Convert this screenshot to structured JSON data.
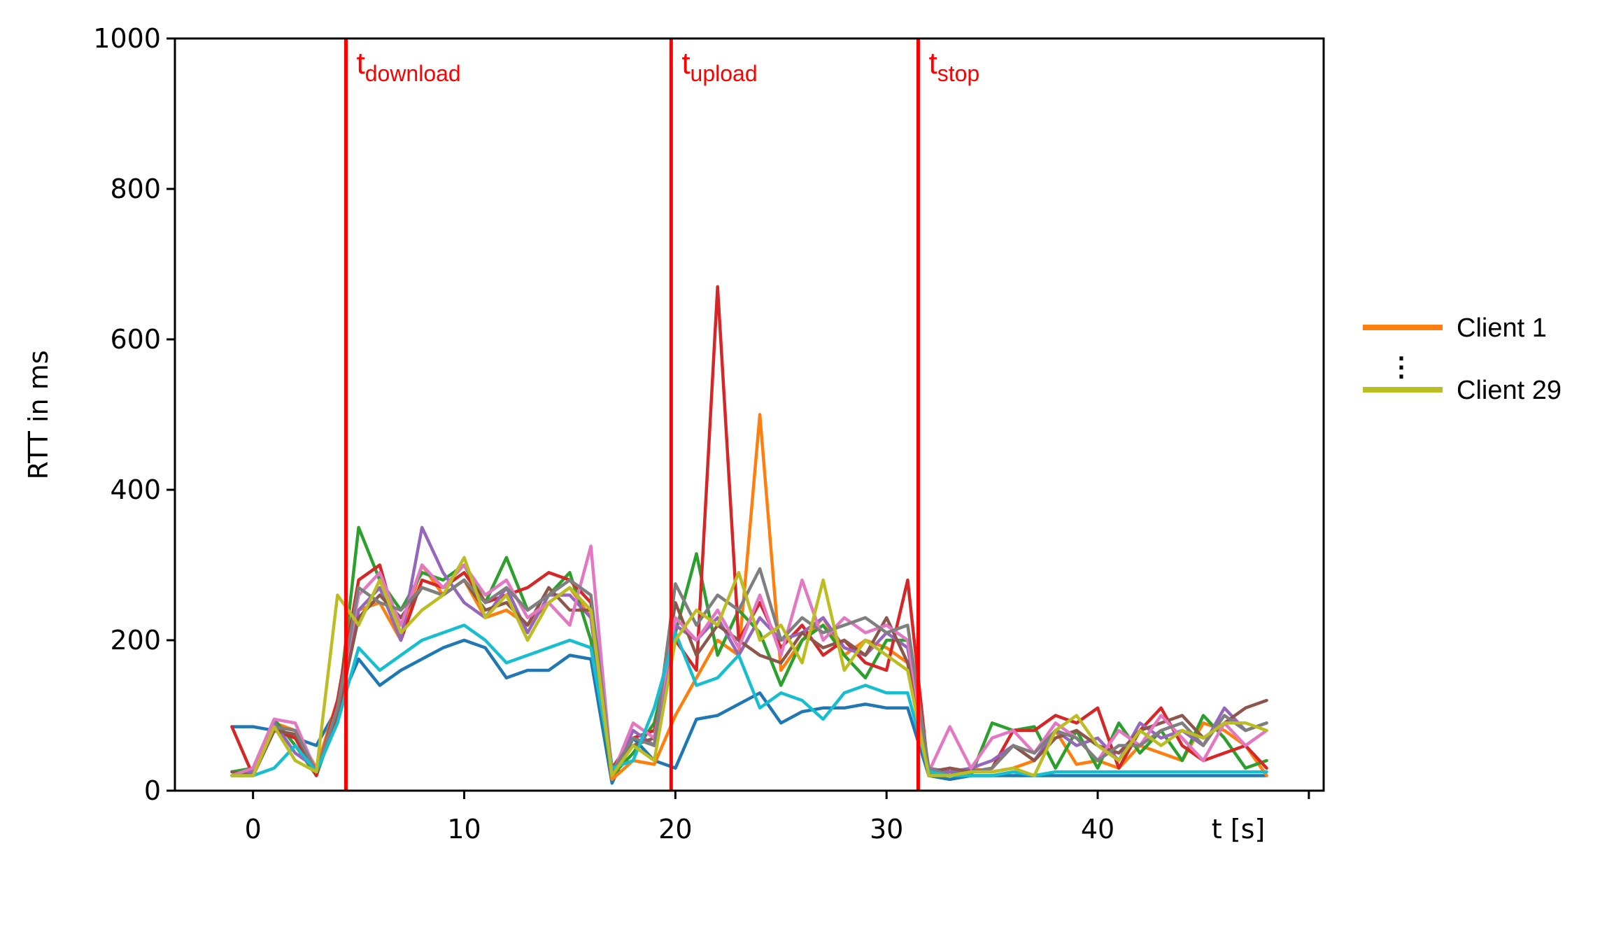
{
  "chart_data": {
    "type": "line",
    "xlabel": "t [s]",
    "ylabel": "RTT in ms",
    "xlim": [
      -3.7,
      50.7
    ],
    "ylim": [
      0,
      1000
    ],
    "xticks": [
      0,
      10,
      20,
      30,
      40
    ],
    "yticks": [
      0,
      200,
      400,
      600,
      800,
      1000
    ],
    "grid": false,
    "legend_position": "right",
    "legend": {
      "first": {
        "label": "Client 1",
        "color": "#ff7f0e"
      },
      "ellipsis": "⋮",
      "last": {
        "label": "Client 29",
        "color": "#bcbd22"
      }
    },
    "markers": [
      {
        "name": "download",
        "base": "t",
        "sub": "download",
        "x": 4.4,
        "color": "#ff0000"
      },
      {
        "name": "upload",
        "base": "t",
        "sub": "upload",
        "x": 19.8,
        "color": "#ff0000"
      },
      {
        "name": "stop",
        "base": "t",
        "sub": "stop",
        "x": 31.5,
        "color": "#ff0000"
      }
    ],
    "x": [
      -1,
      0,
      1,
      2,
      3,
      4,
      5,
      6,
      7,
      8,
      9,
      10,
      11,
      12,
      13,
      14,
      15,
      16,
      17,
      18,
      19,
      20,
      21,
      22,
      23,
      24,
      25,
      26,
      27,
      28,
      29,
      30,
      31,
      32,
      33,
      34,
      35,
      36,
      37,
      38,
      39,
      40,
      41,
      42,
      43,
      44,
      45,
      46,
      47,
      48
    ],
    "series": [
      {
        "color": "#1f77b4",
        "values": [
          85,
          85,
          80,
          70,
          60,
          110,
          175,
          140,
          160,
          175,
          190,
          200,
          190,
          150,
          160,
          160,
          180,
          175,
          10,
          70,
          40,
          30,
          95,
          100,
          115,
          130,
          90,
          105,
          110,
          110,
          115,
          110,
          110,
          20,
          15,
          20,
          20,
          20,
          20,
          20,
          20,
          20,
          20,
          20,
          20,
          20,
          20,
          20,
          20,
          20
        ]
      },
      {
        "color": "#ff7f0e",
        "values": [
          20,
          25,
          90,
          80,
          30,
          120,
          240,
          250,
          200,
          300,
          260,
          280,
          230,
          240,
          220,
          250,
          270,
          230,
          15,
          40,
          35,
          100,
          150,
          200,
          180,
          500,
          160,
          200,
          230,
          180,
          200,
          190,
          170,
          25,
          20,
          30,
          25,
          30,
          40,
          80,
          35,
          40,
          30,
          60,
          50,
          40,
          90,
          80,
          60,
          20
        ]
      },
      {
        "color": "#2ca02c",
        "values": [
          25,
          30,
          95,
          60,
          20,
          100,
          350,
          280,
          240,
          290,
          280,
          300,
          250,
          310,
          240,
          260,
          290,
          200,
          20,
          50,
          90,
          210,
          315,
          180,
          240,
          210,
          140,
          200,
          220,
          180,
          150,
          200,
          200,
          20,
          25,
          20,
          90,
          80,
          85,
          30,
          80,
          30,
          90,
          50,
          80,
          40,
          100,
          70,
          30,
          40
        ]
      },
      {
        "color": "#d62728",
        "values": [
          85,
          20,
          80,
          70,
          20,
          120,
          280,
          300,
          200,
          280,
          270,
          290,
          250,
          260,
          270,
          290,
          280,
          250,
          30,
          70,
          80,
          200,
          160,
          670,
          200,
          250,
          190,
          220,
          180,
          200,
          170,
          160,
          280,
          20,
          30,
          25,
          30,
          80,
          80,
          100,
          90,
          110,
          30,
          80,
          110,
          60,
          40,
          50,
          60,
          30
        ]
      },
      {
        "color": "#9467bd",
        "values": [
          20,
          25,
          90,
          50,
          30,
          90,
          240,
          270,
          200,
          350,
          290,
          250,
          230,
          270,
          210,
          260,
          260,
          230,
          20,
          80,
          60,
          220,
          200,
          230,
          180,
          230,
          200,
          210,
          230,
          190,
          180,
          210,
          190,
          30,
          25,
          30,
          40,
          60,
          40,
          80,
          60,
          70,
          40,
          90,
          70,
          80,
          60,
          110,
          80,
          90
        ]
      },
      {
        "color": "#8c564b",
        "values": [
          25,
          20,
          80,
          75,
          25,
          100,
          230,
          260,
          230,
          270,
          260,
          280,
          240,
          250,
          220,
          270,
          240,
          240,
          30,
          60,
          70,
          250,
          180,
          220,
          200,
          180,
          170,
          210,
          190,
          200,
          180,
          230,
          170,
          25,
          30,
          25,
          30,
          60,
          40,
          70,
          80,
          60,
          50,
          80,
          90,
          100,
          70,
          90,
          110,
          120
        ]
      },
      {
        "color": "#e377c2",
        "values": [
          20,
          30,
          95,
          90,
          25,
          110,
          260,
          290,
          220,
          300,
          270,
          300,
          260,
          280,
          230,
          250,
          220,
          325,
          20,
          90,
          70,
          230,
          200,
          240,
          190,
          260,
          180,
          280,
          200,
          230,
          210,
          220,
          200,
          25,
          85,
          30,
          70,
          80,
          50,
          90,
          70,
          40,
          80,
          60,
          100,
          70,
          40,
          90,
          60,
          80
        ]
      },
      {
        "color": "#7f7f7f",
        "values": [
          20,
          20,
          85,
          80,
          25,
          110,
          270,
          250,
          240,
          270,
          260,
          280,
          250,
          270,
          240,
          260,
          280,
          260,
          25,
          70,
          60,
          275,
          220,
          260,
          240,
          295,
          200,
          230,
          210,
          220,
          230,
          210,
          220,
          30,
          20,
          25,
          30,
          60,
          50,
          80,
          70,
          40,
          60,
          60,
          80,
          90,
          60,
          100,
          80,
          90
        ]
      },
      {
        "color": "#17becf",
        "values": [
          20,
          20,
          30,
          60,
          25,
          90,
          190,
          160,
          180,
          200,
          210,
          220,
          200,
          170,
          180,
          190,
          200,
          190,
          30,
          40,
          110,
          210,
          140,
          150,
          180,
          110,
          130,
          120,
          95,
          130,
          140,
          130,
          130,
          25,
          20,
          20,
          20,
          25,
          20,
          25,
          25,
          25,
          25,
          25,
          25,
          25,
          25,
          25,
          25,
          25
        ]
      },
      {
        "color": "#bcbd22",
        "values": [
          20,
          20,
          85,
          40,
          25,
          260,
          220,
          280,
          210,
          240,
          260,
          310,
          230,
          260,
          200,
          250,
          270,
          240,
          20,
          60,
          40,
          200,
          240,
          220,
          290,
          200,
          220,
          170,
          280,
          160,
          200,
          180,
          160,
          20,
          20,
          25,
          25,
          30,
          20,
          80,
          100,
          60,
          40,
          80,
          60,
          80,
          70,
          90,
          90,
          80
        ]
      }
    ]
  }
}
